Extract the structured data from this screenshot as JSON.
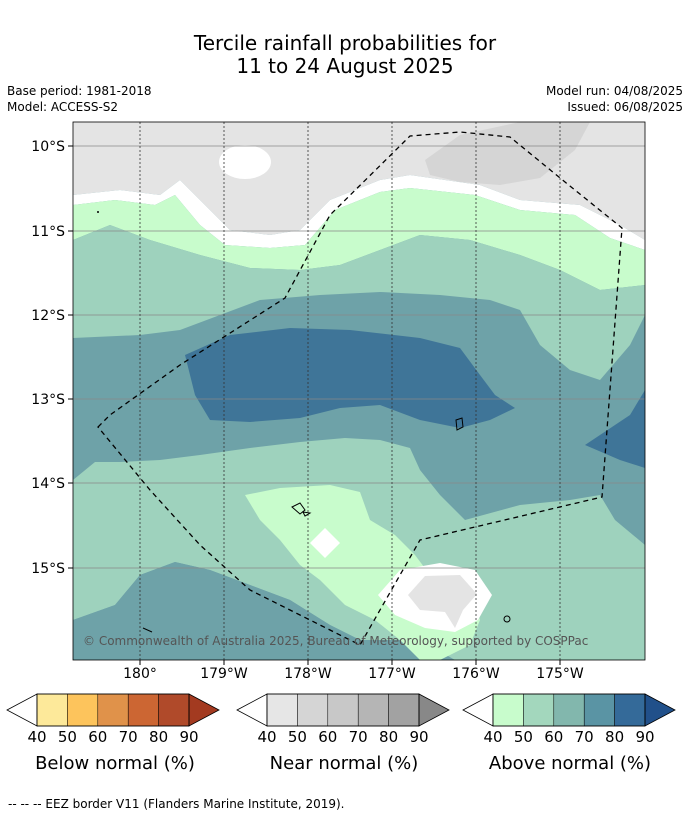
{
  "header": {
    "title_line1": "Tercile rainfall probabilities for",
    "title_line2": "11 to 24 August 2025",
    "base_period": "Base period: 1981-2018",
    "model": "Model: ACCESS-S2",
    "model_run": "Model run: 04/08/2025",
    "issued": "Issued: 06/08/2025"
  },
  "map": {
    "lat_labels": [
      "10°S",
      "11°S",
      "12°S",
      "13°S",
      "14°S",
      "15°S"
    ],
    "lon_labels": [
      "180°",
      "179°W",
      "178°W",
      "177°W",
      "176°W",
      "175°W"
    ],
    "copyright": "© Commonwealth of Australia 2025, Bureau of Meteorology, supported by COSPPac"
  },
  "legends": [
    {
      "name": "Below normal (%)",
      "ticks": [
        "40",
        "50",
        "60",
        "70",
        "80",
        "90"
      ],
      "colors": [
        "#fde99a",
        "#fdc45c",
        "#e0924a",
        "#cc6633",
        "#b04a2a",
        "#a33a20"
      ]
    },
    {
      "name": "Near normal (%)",
      "ticks": [
        "40",
        "50",
        "60",
        "70",
        "80",
        "90"
      ],
      "colors": [
        "#e6e6e6",
        "#d5d5d5",
        "#c8c8c8",
        "#b5b5b5",
        "#a2a2a2",
        "#888888"
      ]
    },
    {
      "name": "Above normal (%)",
      "ticks": [
        "40",
        "50",
        "60",
        "70",
        "80",
        "90"
      ],
      "colors": [
        "#c8fccc",
        "#a3d7bd",
        "#82b7ad",
        "#5a94a4",
        "#346a99",
        "#21508a"
      ]
    }
  ],
  "footnote": "-- -- -- EEZ border V11 (Flanders Marine Institute, 2019).",
  "colors": {
    "near_40": "#e4e4e4",
    "near_50": "#d5d5d5",
    "above_40": "#c8fccc",
    "above_50": "#9ed2bd",
    "above_60": "#6ea2a8",
    "above_70": "#3f7598",
    "neutral": "#ffffff"
  }
}
